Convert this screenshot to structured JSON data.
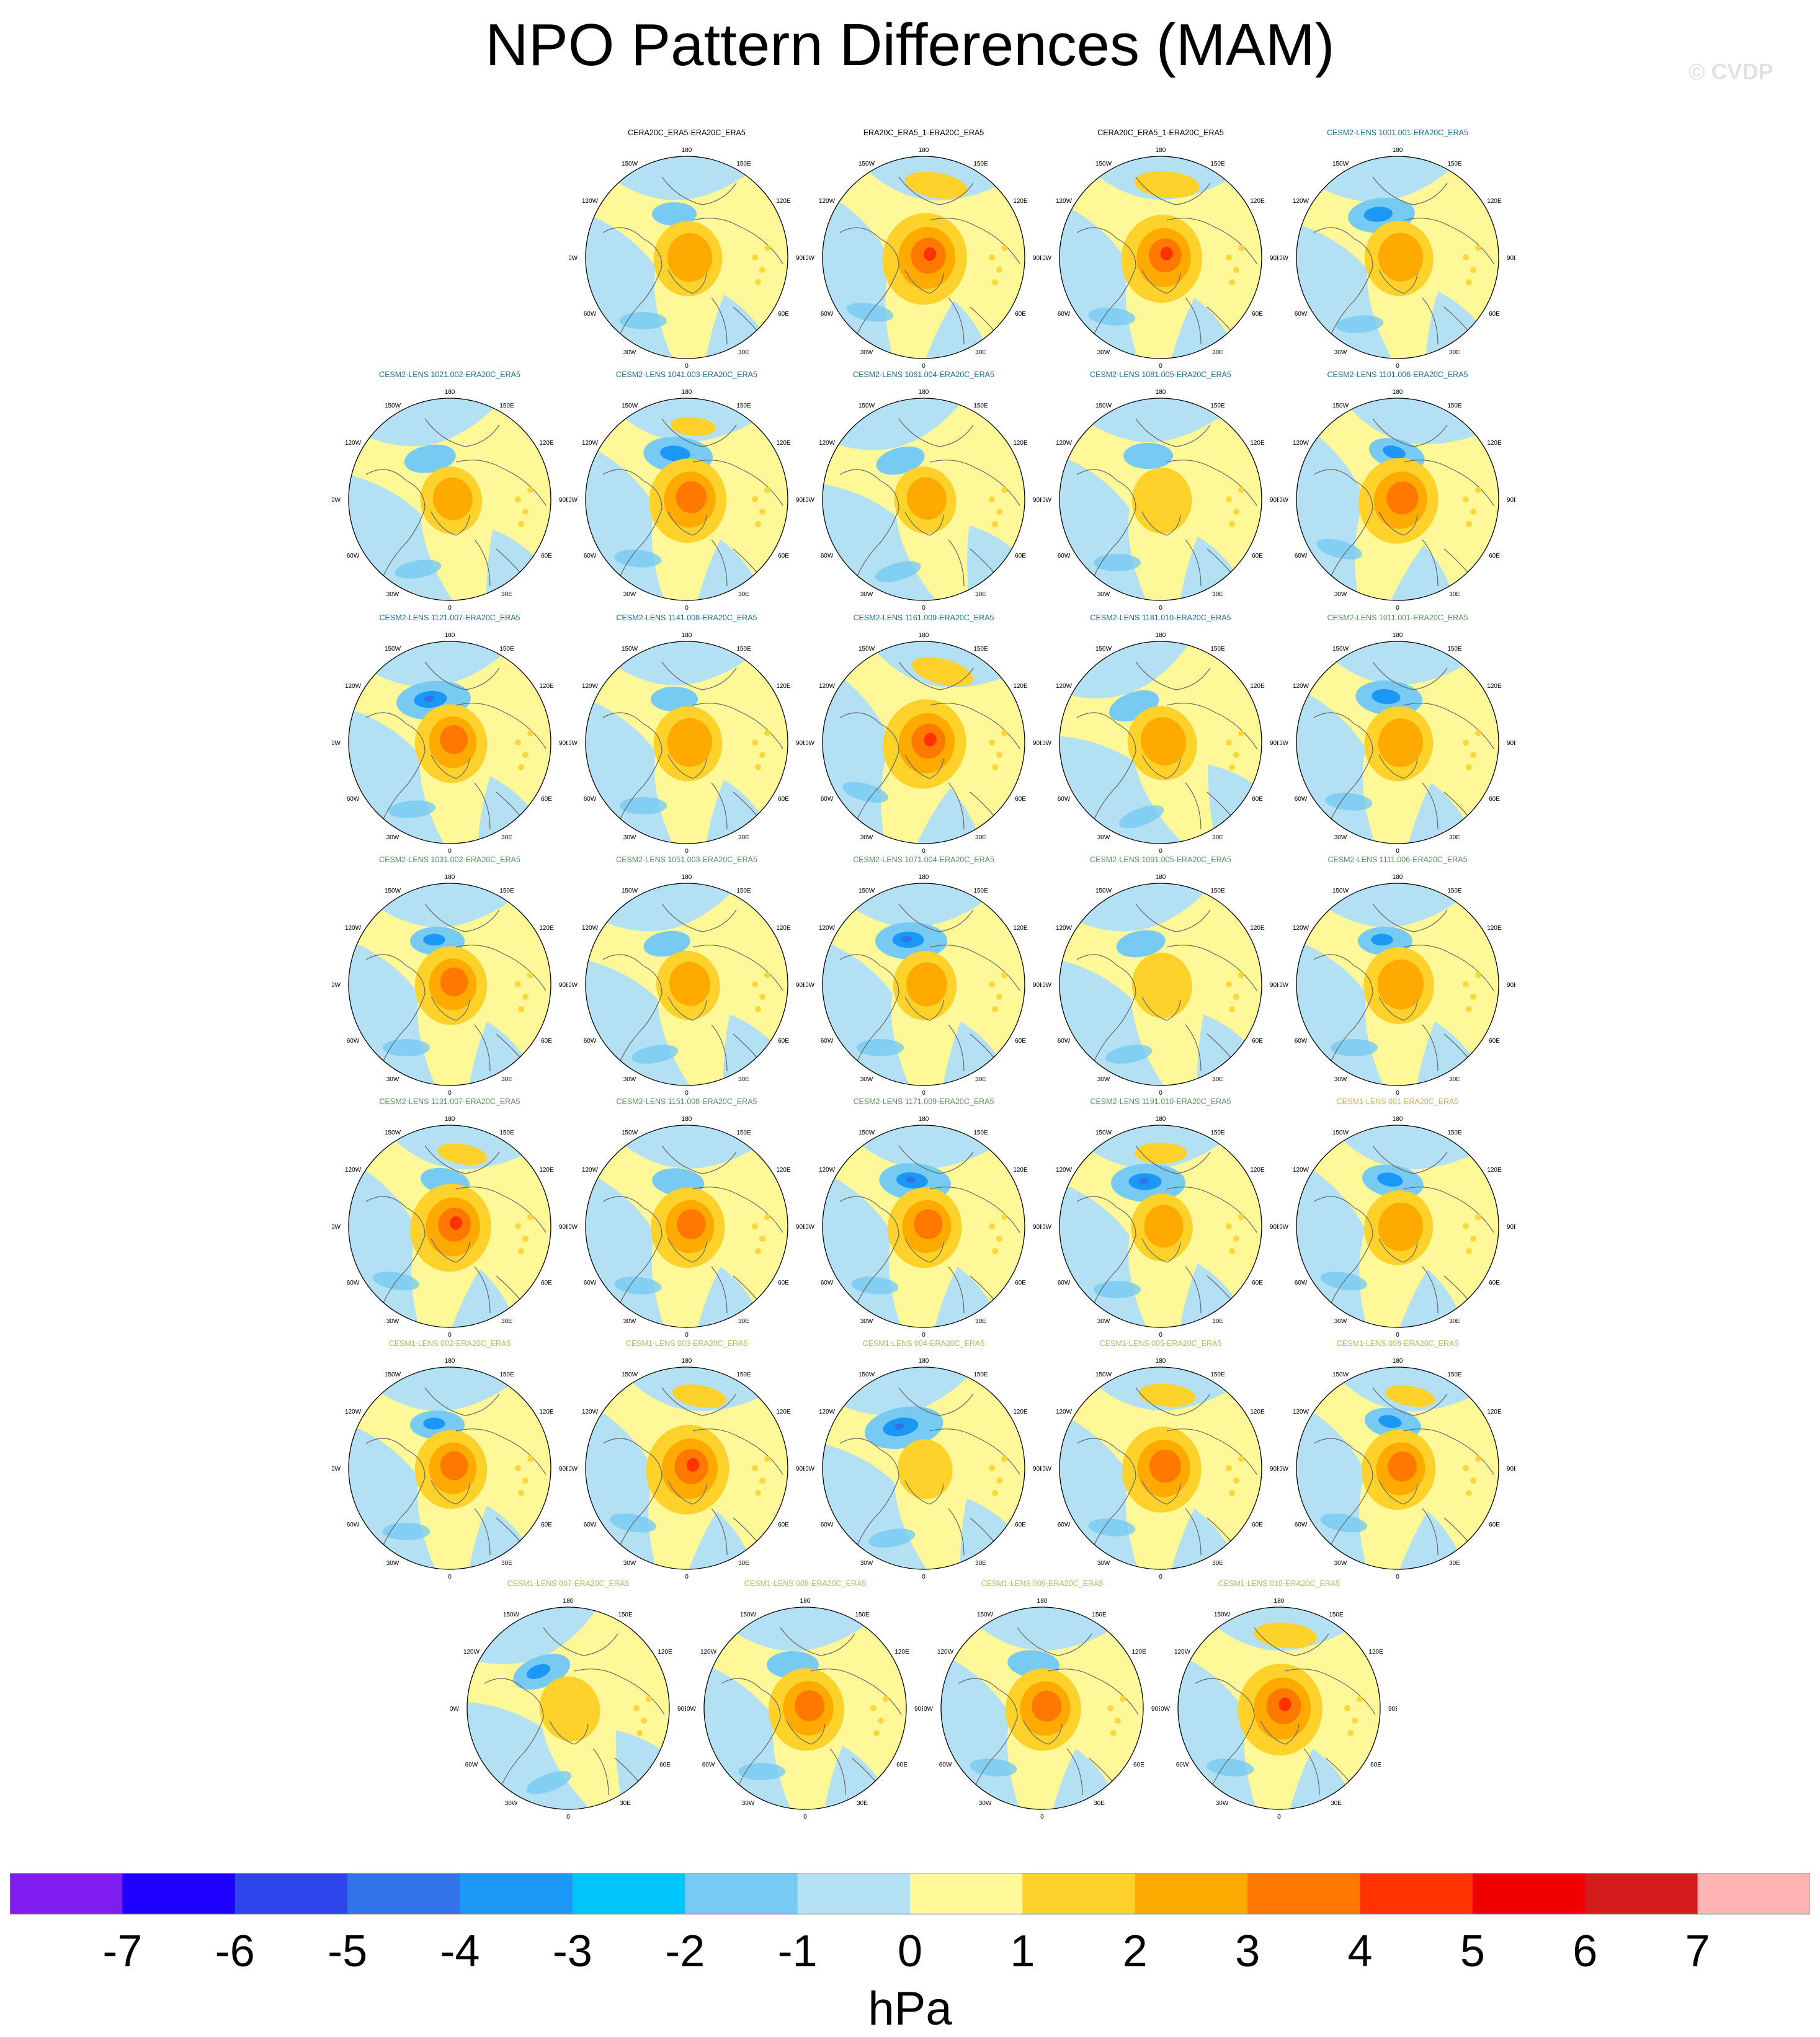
{
  "title": "NPO Pattern Differences (MAM)",
  "watermark": "© CVDP",
  "colors": {
    "obs_title": "#000000",
    "cesm2_smbb_title": "#1f6d8c",
    "cesm2_cmip6_title": "#5e8e5e",
    "cesm1_title": "#c8b15e"
  },
  "map_labels": {
    "top": "180",
    "bottom": "0",
    "left": "90W",
    "right": "90E",
    "upper_left_outer": "150W",
    "upper_left_inner": "120W",
    "upper_right_outer": "150E",
    "upper_right_inner": "120E",
    "lower_left_outer": "30W",
    "lower_left_inner": "60W",
    "lower_right_outer": "30E",
    "lower_right_inner": "60E"
  },
  "chart_data": {
    "type": "heatmap",
    "description_units": "hPa",
    "colorbar": {
      "label": "hPa",
      "tick_labels": [
        "-7",
        "-6",
        "-5",
        "-4",
        "-3",
        "-2",
        "-1",
        "0",
        "1",
        "2",
        "3",
        "4",
        "5",
        "6",
        "7"
      ],
      "colors": [
        "#7f1cf0",
        "#1e00ff",
        "#2d45eb",
        "#3173e8",
        "#1b97f5",
        "#00c5fb",
        "#77caf2",
        "#b4e0f4",
        "#fff899",
        "#ffd12b",
        "#ffaa00",
        "#ff7800",
        "#ff3200",
        "#f00000",
        "#d41c1c",
        "#ffb4b4"
      ]
    },
    "panels": [
      {
        "title": "CERA20C_ERA5-ERA20C_ERA5",
        "group": "obs",
        "intensity": 0.55,
        "aleutian_low": 0.15,
        "pac_ridge": 0.05,
        "rotation": 0
      },
      {
        "title": "ERA20C_ERA5_1-ERA20C_ERA5",
        "group": "obs",
        "intensity": 1.0,
        "aleutian_low": 0.0,
        "pac_ridge": 0.6,
        "rotation": 10
      },
      {
        "title": "CERA20C_ERA5_1-ERA20C_ERA5",
        "group": "obs",
        "intensity": 0.9,
        "aleutian_low": 0.0,
        "pac_ridge": 0.65,
        "rotation": 5
      },
      {
        "title": "CESM2-LENS 1001.001-ERA20C_ERA5",
        "group": "cesm2_smbb",
        "intensity": 0.55,
        "aleutian_low": 0.6,
        "pac_ridge": 0.0,
        "rotation": -5
      },
      {
        "title": "CESM2-LENS 1021.002-ERA20C_ERA5",
        "group": "cesm2_smbb",
        "intensity": 0.35,
        "aleutian_low": 0.3,
        "pac_ridge": 0.0,
        "rotation": -10
      },
      {
        "title": "CESM2-LENS 1041.003-ERA20C_ERA5",
        "group": "cesm2_smbb",
        "intensity": 0.8,
        "aleutian_low": 0.65,
        "pac_ridge": 0.2,
        "rotation": 5
      },
      {
        "title": "CESM2-LENS 1061.004-ERA20C_ERA5",
        "group": "cesm2_smbb",
        "intensity": 0.35,
        "aleutian_low": 0.25,
        "pac_ridge": 0.0,
        "rotation": -15
      },
      {
        "title": "CESM2-LENS 1081.005-ERA20C_ERA5",
        "group": "cesm2_smbb",
        "intensity": 0.3,
        "aleutian_low": 0.25,
        "pac_ridge": 0.0,
        "rotation": 0
      },
      {
        "title": "CESM2-LENS 1101.006-ERA20C_ERA5",
        "group": "cesm2_smbb",
        "intensity": 0.85,
        "aleutian_low": 0.4,
        "pac_ridge": 0.0,
        "rotation": 15
      },
      {
        "title": "CESM2-LENS 1121.007-ERA20C_ERA5",
        "group": "cesm2_smbb",
        "intensity": 0.65,
        "aleutian_low": 0.75,
        "pac_ridge": 0.0,
        "rotation": -5
      },
      {
        "title": "CESM2-LENS 1141.008-ERA20C_ERA5",
        "group": "cesm2_smbb",
        "intensity": 0.55,
        "aleutian_low": 0.2,
        "pac_ridge": 0.0,
        "rotation": 0
      },
      {
        "title": "CESM2-LENS 1161.009-ERA20C_ERA5",
        "group": "cesm2_smbb",
        "intensity": 0.95,
        "aleutian_low": 0.0,
        "pac_ridge": 0.6,
        "rotation": 15
      },
      {
        "title": "CESM2-LENS 1181.010-ERA20C_ERA5",
        "group": "cesm2_smbb",
        "intensity": 0.55,
        "aleutian_low": 0.3,
        "pac_ridge": 0.0,
        "rotation": -20
      },
      {
        "title": "CESM2-LENS 1011.001-ERA20C_ERA5",
        "group": "cesm2_cmip6",
        "intensity": 0.55,
        "aleutian_low": 0.6,
        "pac_ridge": 0.0,
        "rotation": 5
      },
      {
        "title": "CESM2-LENS 1031.002-ERA20C_ERA5",
        "group": "cesm2_cmip6",
        "intensity": 0.65,
        "aleutian_low": 0.35,
        "pac_ridge": 0.0,
        "rotation": 0
      },
      {
        "title": "CESM2-LENS 1051.003-ERA20C_ERA5",
        "group": "cesm2_cmip6",
        "intensity": 0.4,
        "aleutian_low": 0.2,
        "pac_ridge": 0.0,
        "rotation": -10
      },
      {
        "title": "CESM2-LENS 1071.004-ERA20C_ERA5",
        "group": "cesm2_cmip6",
        "intensity": 0.4,
        "aleutian_low": 0.7,
        "pac_ridge": 0.0,
        "rotation": 0
      },
      {
        "title": "CESM2-LENS 1091.005-ERA20C_ERA5",
        "group": "cesm2_cmip6",
        "intensity": 0.3,
        "aleutian_low": 0.25,
        "pac_ridge": 0.0,
        "rotation": -10
      },
      {
        "title": "CESM2-LENS 1111.006-ERA20C_ERA5",
        "group": "cesm2_cmip6",
        "intensity": 0.6,
        "aleutian_low": 0.35,
        "pac_ridge": 0.0,
        "rotation": 0
      },
      {
        "title": "CESM2-LENS 1131.007-ERA20C_ERA5",
        "group": "cesm2_cmip6",
        "intensity": 0.9,
        "aleutian_low": 0.25,
        "pac_ridge": 0.3,
        "rotation": 10
      },
      {
        "title": "CESM2-LENS 1151.008-ERA20C_ERA5",
        "group": "cesm2_cmip6",
        "intensity": 0.7,
        "aleutian_low": 0.3,
        "pac_ridge": 0.0,
        "rotation": 5
      },
      {
        "title": "CESM2-LENS 1171.009-ERA20C_ERA5",
        "group": "cesm2_cmip6",
        "intensity": 0.7,
        "aleutian_low": 0.7,
        "pac_ridge": 0.0,
        "rotation": 5
      },
      {
        "title": "CESM2-LENS 1191.010-ERA20C_ERA5",
        "group": "cesm2_cmip6",
        "intensity": 0.35,
        "aleutian_low": 0.75,
        "pac_ridge": 0.35,
        "rotation": 0
      },
      {
        "title": "CESM1-LENS 001-ERA20C_ERA5",
        "group": "cesm1",
        "intensity": 0.55,
        "aleutian_low": 0.5,
        "pac_ridge": 0.0,
        "rotation": 10
      },
      {
        "title": "CESM1-LENS 002-ERA20C_ERA5",
        "group": "cesm1",
        "intensity": 0.65,
        "aleutian_low": 0.35,
        "pac_ridge": 0.0,
        "rotation": 0
      },
      {
        "title": "CESM1-LENS 003-ERA20C_ERA5",
        "group": "cesm1",
        "intensity": 0.95,
        "aleutian_low": 0.0,
        "pac_ridge": 0.4,
        "rotation": 10
      },
      {
        "title": "CESM1-LENS 004-ERA20C_ERA5",
        "group": "cesm1",
        "intensity": 0.15,
        "aleutian_low": 0.85,
        "pac_ridge": 0.0,
        "rotation": -10
      },
      {
        "title": "CESM1-LENS 005-ERA20C_ERA5",
        "group": "cesm1",
        "intensity": 0.85,
        "aleutian_low": 0.0,
        "pac_ridge": 0.45,
        "rotation": 5
      },
      {
        "title": "CESM1-LENS 006-ERA20C_ERA5",
        "group": "cesm1",
        "intensity": 0.7,
        "aleutian_low": 0.4,
        "pac_ridge": 0.3,
        "rotation": 10
      },
      {
        "title": "CESM1-LENS 007-ERA20C_ERA5",
        "group": "cesm1",
        "intensity": 0.3,
        "aleutian_low": 0.45,
        "pac_ridge": 0.0,
        "rotation": -20
      },
      {
        "title": "CESM1-LENS 008-ERA20C_ERA5",
        "group": "cesm1",
        "intensity": 0.75,
        "aleutian_low": 0.3,
        "pac_ridge": 0.0,
        "rotation": 0
      },
      {
        "title": "CESM1-LENS 009-ERA20C_ERA5",
        "group": "cesm1",
        "intensity": 0.75,
        "aleutian_low": 0.3,
        "pac_ridge": 0.0,
        "rotation": 5
      },
      {
        "title": "CESM1-LENS 010-ERA20C_ERA5",
        "group": "cesm1",
        "intensity": 1.0,
        "aleutian_low": 0.0,
        "pac_ridge": 0.6,
        "rotation": 5
      }
    ]
  }
}
